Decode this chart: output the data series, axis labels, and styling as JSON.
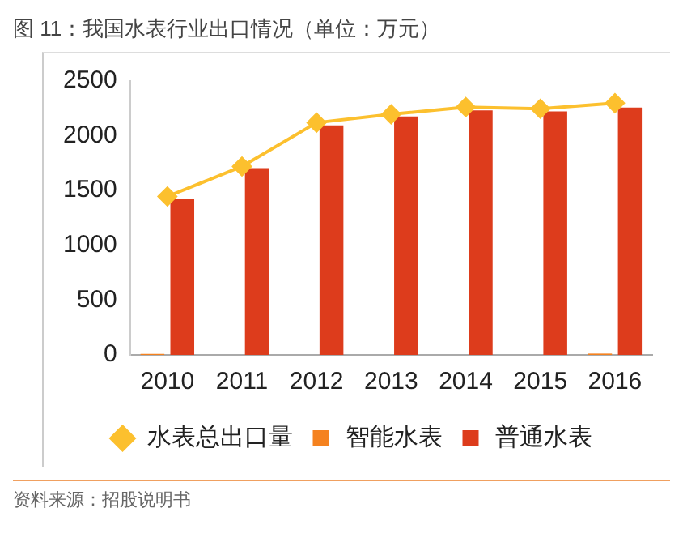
{
  "chart_data": {
    "type": "bar",
    "title": "图 11：我国水表行业出口情况（单位：万元）",
    "categories": [
      "2010",
      "2011",
      "2012",
      "2013",
      "2014",
      "2015",
      "2016"
    ],
    "series": [
      {
        "name": "智能水表",
        "color": "#f5821f",
        "values": [
          10,
          0,
          0,
          0,
          0,
          0,
          12
        ]
      },
      {
        "name": "普通水表",
        "color": "#dd3c1c",
        "values": [
          1420,
          1705,
          2095,
          2176,
          2232,
          2222,
          2257
        ]
      },
      {
        "name": "水表总出口量",
        "type": "line",
        "color": "#fcc02e",
        "values": [
          1446,
          1720,
          2120,
          2196,
          2262,
          2247,
          2298
        ]
      }
    ],
    "ylim": [
      0,
      2500
    ],
    "yticks": [
      0,
      500,
      1000,
      1500,
      2000,
      2500
    ],
    "legend": "bottom",
    "marker": "diamond",
    "annotations": [
      "资料来源：招股说明书"
    ]
  }
}
